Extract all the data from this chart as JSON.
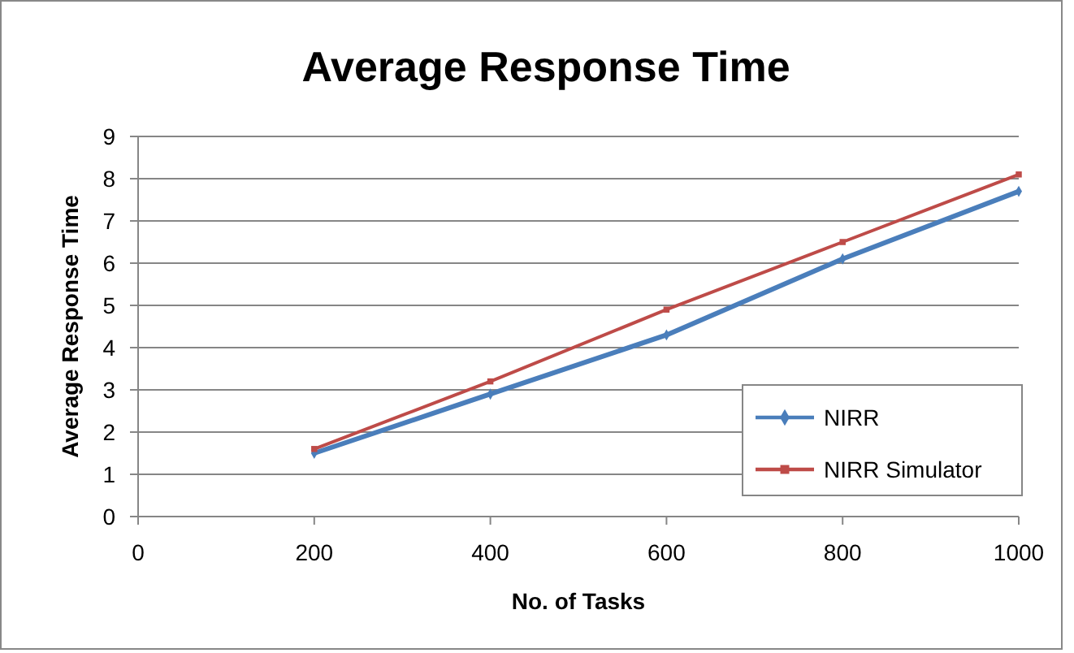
{
  "chart_data": {
    "type": "line",
    "title": "Average Response Time",
    "xlabel": "No. of Tasks",
    "ylabel": "Average Response Time",
    "x": [
      200,
      400,
      600,
      800,
      1000
    ],
    "series": [
      {
        "name": "NIRR",
        "color": "#4a7ebb",
        "marker": "diamond",
        "values": [
          1.5,
          2.9,
          4.3,
          6.1,
          7.7
        ]
      },
      {
        "name": "NIRR Simulator",
        "color": "#be4b48",
        "marker": "square",
        "values": [
          1.6,
          3.2,
          4.9,
          6.5,
          8.1
        ]
      }
    ],
    "xlim": [
      0,
      1000
    ],
    "xticks": [
      0,
      200,
      400,
      600,
      800,
      1000
    ],
    "ylim": [
      0,
      9
    ],
    "yticks": [
      0,
      1,
      2,
      3,
      4,
      5,
      6,
      7,
      8,
      9
    ],
    "grid": "y",
    "legend": "right"
  }
}
